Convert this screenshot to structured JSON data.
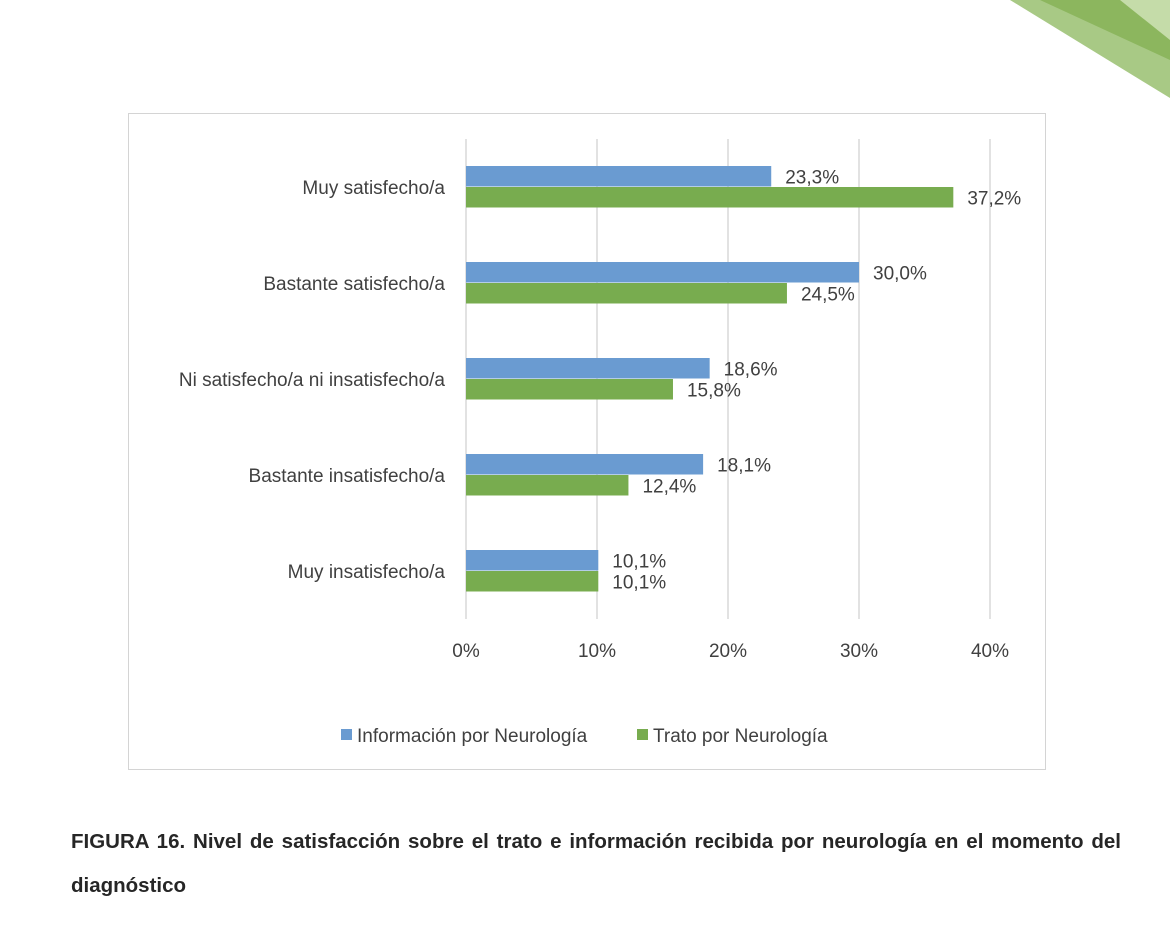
{
  "caption": "FIGURA 16. Nivel de satisfacción sobre el trato e información recibida por neurología en el momento del diagnóstico",
  "colors": {
    "series1": "#6a9bd1",
    "series2": "#78ac4f",
    "grid": "#d9d9d9",
    "decor_light": "#a8c985",
    "decor_dark": "#8cb65e"
  },
  "chart_data": {
    "type": "bar",
    "orientation": "horizontal",
    "categories": [
      "Muy satisfecho/a",
      "Bastante satisfecho/a",
      "Ni satisfecho/a ni insatisfecho/a",
      "Bastante insatisfecho/a",
      "Muy insatisfecho/a"
    ],
    "series": [
      {
        "name": "Información por Neurología",
        "values": [
          23.3,
          30.0,
          18.6,
          18.1,
          10.1
        ],
        "labels": [
          "23,3%",
          "30,0%",
          "18,6%",
          "18,1%",
          "10,1%"
        ]
      },
      {
        "name": "Trato por Neurología",
        "values": [
          37.2,
          24.5,
          15.8,
          12.4,
          10.1
        ],
        "labels": [
          "37,2%",
          "24,5%",
          "15,8%",
          "12,4%",
          "10,1%"
        ]
      }
    ],
    "xlim": [
      0,
      40
    ],
    "xticks": [
      0,
      10,
      20,
      30,
      40
    ],
    "xtick_labels": [
      "0%",
      "10%",
      "20%",
      "30%",
      "40%"
    ],
    "grid": true,
    "legend_position": "bottom"
  }
}
